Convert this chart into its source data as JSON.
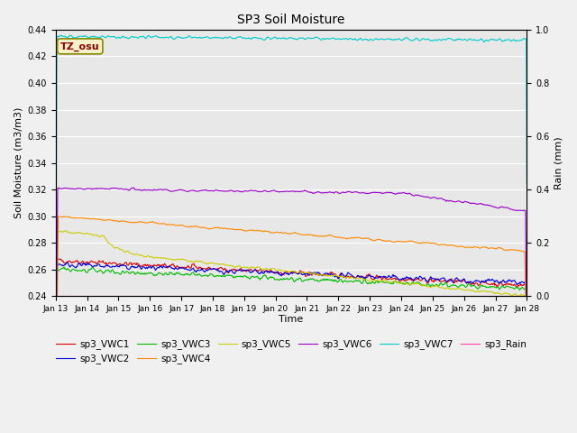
{
  "title": "SP3 Soil Moisture",
  "xlabel": "Time",
  "ylabel_left": "Soil Moisture (m3/m3)",
  "ylabel_right": "Rain (mm)",
  "ylim_left": [
    0.24,
    0.44
  ],
  "ylim_right": [
    0.0,
    1.0
  ],
  "yticks_left": [
    0.24,
    0.26,
    0.28,
    0.3,
    0.32,
    0.34,
    0.36,
    0.38,
    0.4,
    0.42,
    0.44
  ],
  "yticks_right": [
    0.0,
    0.2,
    0.4,
    0.6,
    0.8,
    1.0
  ],
  "xtick_labels": [
    "Jan 13",
    "Jan 14",
    "Jan 15",
    "Jan 16",
    "Jan 17",
    "Jan 18",
    "Jan 19",
    "Jan 20",
    "Jan 21",
    "Jan 22",
    "Jan 23",
    "Jan 24",
    "Jan 25",
    "Jan 26",
    "Jan 27",
    "Jan 28"
  ],
  "plot_bg": "#e8e8e8",
  "fig_bg": "#f0f0f0",
  "grid_color": "#ffffff",
  "tz_label": "TZ_osu",
  "tz_bg": "#f5f0c8",
  "tz_fg": "#8b0000",
  "tz_edge": "#888800",
  "series": {
    "sp3_VWC1": {
      "color": "#dd0000",
      "linewidth": 0.8
    },
    "sp3_VWC2": {
      "color": "#0000dd",
      "linewidth": 0.8
    },
    "sp3_VWC3": {
      "color": "#00bb00",
      "linewidth": 0.8
    },
    "sp3_VWC4": {
      "color": "#ff8800",
      "linewidth": 0.8
    },
    "sp3_VWC5": {
      "color": "#cccc00",
      "linewidth": 0.8
    },
    "sp3_VWC6": {
      "color": "#9900cc",
      "linewidth": 0.8
    },
    "sp3_VWC7": {
      "color": "#00cccc",
      "linewidth": 0.8
    },
    "sp3_Rain": {
      "color": "#ff44aa",
      "linewidth": 0.8
    }
  },
  "legend_order": [
    "sp3_VWC1",
    "sp3_VWC2",
    "sp3_VWC3",
    "sp3_VWC4",
    "sp3_VWC5",
    "sp3_VWC6",
    "sp3_VWC7",
    "sp3_Rain"
  ]
}
